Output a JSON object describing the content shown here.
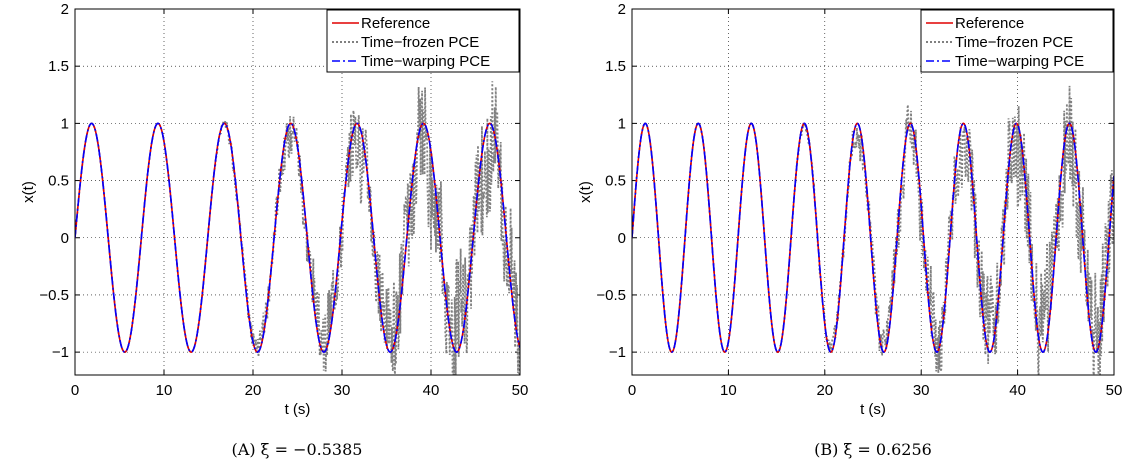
{
  "chart_data": [
    {
      "type": "line",
      "caption": "(A) ξ = −0.5385",
      "xlabel": "t (s)",
      "ylabel": "x(t)",
      "xlim": [
        0,
        50
      ],
      "ylim": [
        -1.2,
        2
      ],
      "x_ticks": [
        "0",
        "10",
        "20",
        "30",
        "40",
        "50"
      ],
      "y_ticks": [
        "−1",
        "−0.5",
        "0",
        "0.5",
        "1",
        "1.5",
        "2"
      ],
      "grid": true,
      "legend_position": "top-right",
      "omega": 0.8426,
      "noise_start": 15,
      "series": [
        {
          "name": "Reference",
          "color": "#e00000",
          "style": "solid"
        },
        {
          "name": "Time−frozen PCE",
          "color": "#808080",
          "style": "dotted"
        },
        {
          "name": "Time−warping PCE",
          "color": "#0000ff",
          "style": "dashdot"
        }
      ]
    },
    {
      "type": "line",
      "caption": "(B) ξ = 0.6256",
      "xlabel": "t (s)",
      "ylabel": "x(t)",
      "xlim": [
        0,
        50
      ],
      "ylim": [
        -1.2,
        2
      ],
      "x_ticks": [
        "0",
        "10",
        "20",
        "30",
        "40",
        "50"
      ],
      "y_ticks": [
        "−1",
        "−0.5",
        "0",
        "0.5",
        "1",
        "1.5",
        "2"
      ],
      "grid": true,
      "legend_position": "top-right",
      "omega": 1.1424,
      "noise_start": 16,
      "series": [
        {
          "name": "Reference",
          "color": "#e00000",
          "style": "solid"
        },
        {
          "name": "Time−frozen PCE",
          "color": "#808080",
          "style": "dotted"
        },
        {
          "name": "Time−warping PCE",
          "color": "#0000ff",
          "style": "dashdot"
        }
      ]
    }
  ]
}
